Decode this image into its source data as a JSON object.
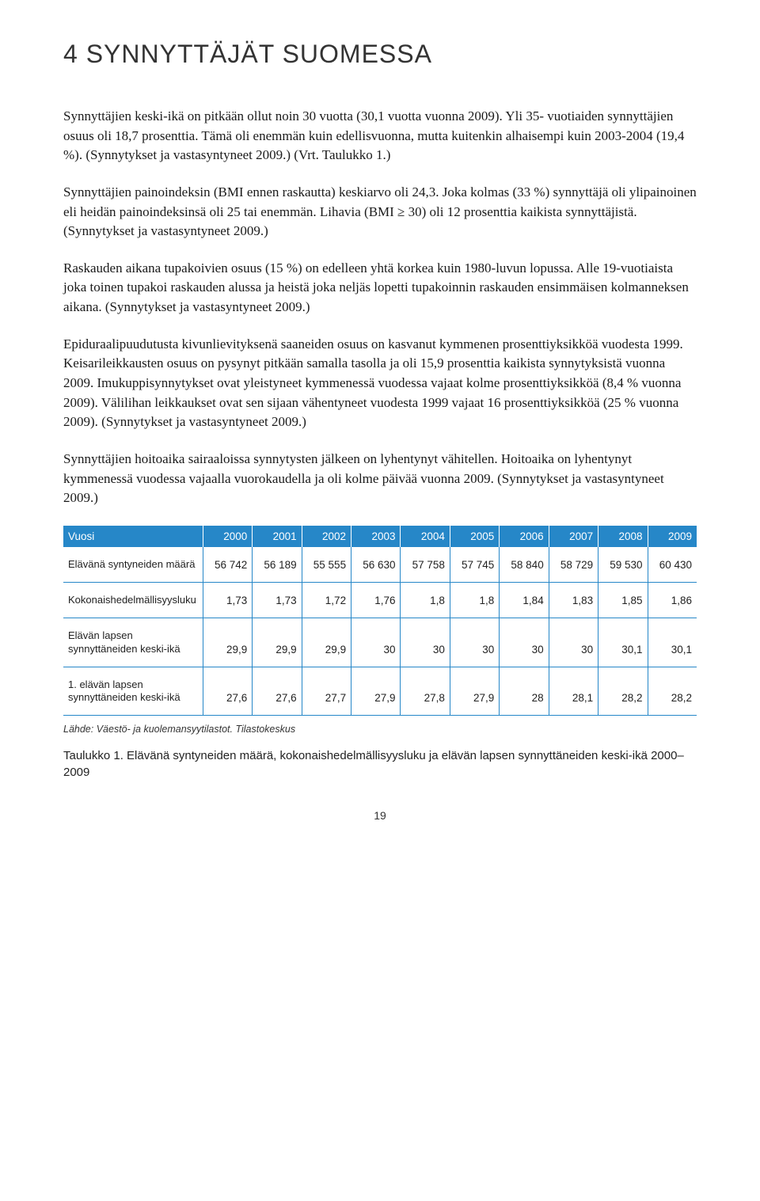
{
  "heading": "4  SYNNYTTÄJÄT SUOMESSA",
  "paragraphs": [
    "Synnyttäjien keski-ikä on pitkään ollut noin 30 vuotta (30,1 vuotta vuonna 2009). Yli 35- vuotiaiden synnyttäjien osuus oli 18,7 prosenttia. Tämä oli enemmän kuin edellisvuonna, mutta kuitenkin alhaisempi kuin 2003-2004 (19,4 %). (Synnytykset ja vastasyntyneet 2009.) (Vrt. Taulukko 1.)",
    "Synnyttäjien painoindeksin (BMI ennen raskautta) keskiarvo oli 24,3. Joka kolmas (33 %) synnyttäjä oli ylipainoinen eli heidän painoindeksinsä oli 25 tai enemmän. Lihavia (BMI ≥ 30) oli 12 prosenttia kaikista synnyttäjistä. (Synnytykset ja vastasyntyneet 2009.)",
    "Raskauden aikana tupakoivien osuus (15 %) on edelleen yhtä korkea kuin 1980-luvun lopussa. Alle 19-vuotiaista joka toinen tupakoi raskauden alussa ja heistä joka neljäs lopetti tupakoinnin raskauden ensimmäisen kolmanneksen aikana. (Synnytykset ja vastasyntyneet 2009.)",
    "Epiduraalipuudutusta kivunlievityksenä saaneiden osuus on kasvanut kymmenen prosenttiyksikköä vuodesta 1999. Keisarileikkausten osuus on pysynyt pitkään samalla tasolla ja oli 15,9 prosenttia kaikista synnytyksistä vuonna 2009. Imukuppisynnytykset ovat yleistyneet kymmenessä vuodessa vajaat kolme prosenttiyksikköä (8,4 % vuonna 2009). Välilihan leikkaukset ovat sen sijaan vähentyneet vuodesta 1999 vajaat 16 prosenttiyksikköä (25 % vuonna 2009). (Synnytykset ja vastasyntyneet 2009.)",
    "Synnyttäjien hoitoaika sairaaloissa synnytysten jälkeen on lyhentynyt vähitellen. Hoitoaika on lyhentynyt kymmenessä vuodessa vajaalla vuorokaudella ja oli kolme päivää vuonna 2009. (Synnytykset ja vastasyntyneet 2009.)"
  ],
  "table": {
    "columns": [
      "Vuosi",
      "2000",
      "2001",
      "2002",
      "2003",
      "2004",
      "2005",
      "2006",
      "2007",
      "2008",
      "2009"
    ],
    "rows": [
      [
        "Elävänä syntyneiden määrä",
        "56 742",
        "56 189",
        "55 555",
        "56 630",
        "57 758",
        "57 745",
        "58 840",
        "58 729",
        "59 530",
        "60 430"
      ],
      [
        "Kokonaishedelmällisyysluku",
        "1,73",
        "1,73",
        "1,72",
        "1,76",
        "1,8",
        "1,8",
        "1,84",
        "1,83",
        "1,85",
        "1,86"
      ],
      [
        "Elävän lapsen synnyttäneiden keski-ikä",
        "29,9",
        "29,9",
        "29,9",
        "30",
        "30",
        "30",
        "30",
        "30",
        "30,1",
        "30,1"
      ],
      [
        "1. elävän lapsen synnyttäneiden keski-ikä",
        "27,6",
        "27,6",
        "27,7",
        "27,9",
        "27,8",
        "27,9",
        "28",
        "28,1",
        "28,2",
        "28,2"
      ]
    ],
    "header_bg": "#2687c8",
    "header_color": "#ffffff",
    "border_color": "#2687c8",
    "font_size": 13.5
  },
  "source": "Lähde: Väestö- ja kuolemansyytilastot. Tilastokeskus",
  "caption": "Taulukko 1. Elävänä syntyneiden määrä, kokonaishedelmällisyysluku ja elävän lapsen synnyttäneiden keski-ikä 2000– 2009",
  "page_number": "19"
}
